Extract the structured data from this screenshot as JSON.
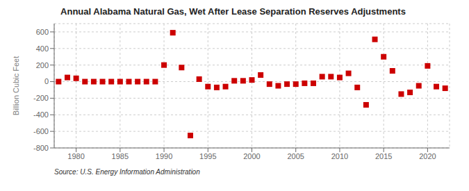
{
  "chart_data": {
    "type": "scatter",
    "title": "Annual Alabama Natural Gas, Wet After Lease Separation Reserves Adjustments",
    "ylabel": "Billion Cubic Feet",
    "source": "Source: U.S. Energy Information Administration",
    "x": [
      1978,
      1979,
      1980,
      1981,
      1982,
      1983,
      1984,
      1985,
      1986,
      1987,
      1988,
      1989,
      1990,
      1991,
      1992,
      1993,
      1994,
      1995,
      1996,
      1997,
      1998,
      1999,
      2000,
      2001,
      2002,
      2003,
      2004,
      2005,
      2006,
      2007,
      2008,
      2009,
      2010,
      2011,
      2012,
      2013,
      2014,
      2015,
      2016,
      2017,
      2018,
      2019,
      2020,
      2021,
      2022
    ],
    "values": [
      0,
      50,
      40,
      0,
      0,
      0,
      0,
      0,
      0,
      0,
      0,
      0,
      200,
      590,
      170,
      -650,
      30,
      -60,
      -70,
      -60,
      10,
      10,
      20,
      80,
      -30,
      -50,
      -30,
      -30,
      -20,
      -20,
      60,
      60,
      50,
      100,
      -70,
      -280,
      510,
      300,
      130,
      -150,
      -130,
      -50,
      190,
      -60,
      -80
    ],
    "color": "#cc0000",
    "marker": "square",
    "xlim": [
      1977.5,
      2022.5
    ],
    "xticks": [
      1980,
      1985,
      1990,
      1995,
      2000,
      2005,
      2010,
      2015,
      2020
    ],
    "ylim": [
      -800,
      700
    ],
    "yticks": [
      -800,
      -600,
      -400,
      -200,
      0,
      200,
      400,
      600
    ],
    "grid": true
  }
}
